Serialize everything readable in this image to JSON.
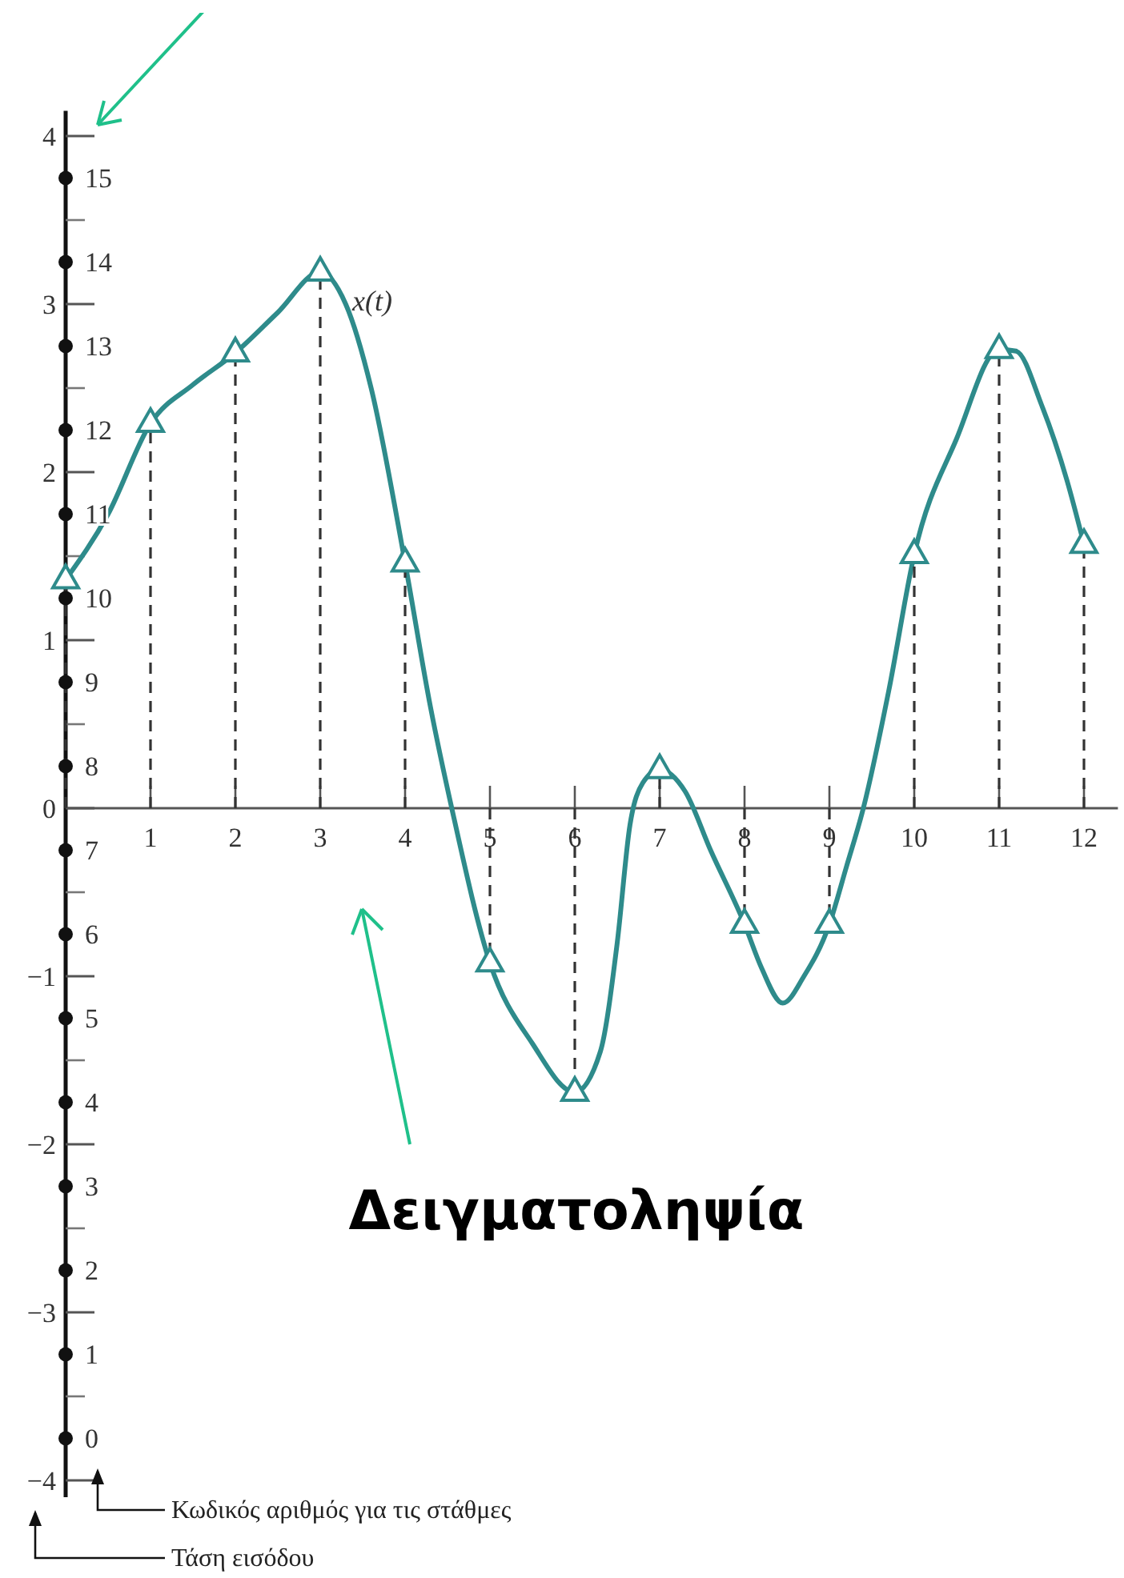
{
  "chart_data": {
    "type": "line",
    "annotations": [
      "Δειγματοληψία",
      "Κωδικός αριθμός για τις στάθμες",
      "Τάση εισόδου"
    ],
    "xlim": [
      0,
      12.4
    ],
    "xticks": [
      1,
      2,
      3,
      4,
      5,
      6,
      7,
      8,
      9,
      10,
      11,
      12
    ],
    "ylim": [
      -4.1,
      4.15
    ],
    "yticks": [
      {
        "value": -4,
        "label": "−4"
      },
      {
        "value": -3,
        "label": "−3"
      },
      {
        "value": -2,
        "label": "−2"
      },
      {
        "value": -1,
        "label": "−1"
      },
      0,
      1,
      2,
      3,
      4
    ],
    "y2lim": [
      -0.7,
      15.8
    ],
    "y2ticks": [
      0,
      1,
      2,
      3,
      4,
      5,
      6,
      7,
      8,
      9,
      10,
      11,
      12,
      13,
      14,
      15
    ],
    "series": [
      {
        "name": "x(t)",
        "color": "#2e8b8b",
        "marker": "none",
        "line_style": "solid",
        "x": [
          0,
          0.5,
          1,
          1.5,
          2,
          2.5,
          3,
          3.3,
          3.6,
          4,
          4.3,
          4.55,
          5,
          5.5,
          6,
          6.3,
          6.5,
          6.65,
          6.8,
          7,
          7.3,
          7.6,
          8,
          8.2,
          8.45,
          8.7,
          9,
          9.2,
          9.4,
          9.7,
          10,
          10.5,
          11,
          11.2,
          11.5,
          11.8,
          12
        ],
        "values": [
          1.36,
          1.75,
          2.29,
          2.52,
          2.71,
          2.95,
          3.19,
          3.0,
          2.5,
          1.46,
          0.6,
          0,
          -0.92,
          -1.4,
          -1.69,
          -1.45,
          -0.8,
          -0.1,
          0.15,
          0.23,
          0.1,
          -0.25,
          -0.69,
          -0.95,
          -1.16,
          -1.0,
          -0.69,
          -0.35,
          0,
          0.7,
          1.51,
          2.2,
          2.73,
          2.72,
          2.4,
          1.95,
          1.57
        ]
      },
      {
        "type": "lollipop",
        "color": "#2e8b8b",
        "marker": "triangle",
        "line_style": "dashed",
        "x": [
          0,
          1,
          2,
          3,
          4,
          5,
          6,
          7,
          8,
          9,
          10,
          11,
          12
        ],
        "values": [
          1.36,
          2.29,
          2.71,
          3.19,
          1.46,
          -0.92,
          -1.69,
          0.23,
          -0.69,
          -0.69,
          1.51,
          2.73,
          1.57
        ]
      }
    ]
  }
}
